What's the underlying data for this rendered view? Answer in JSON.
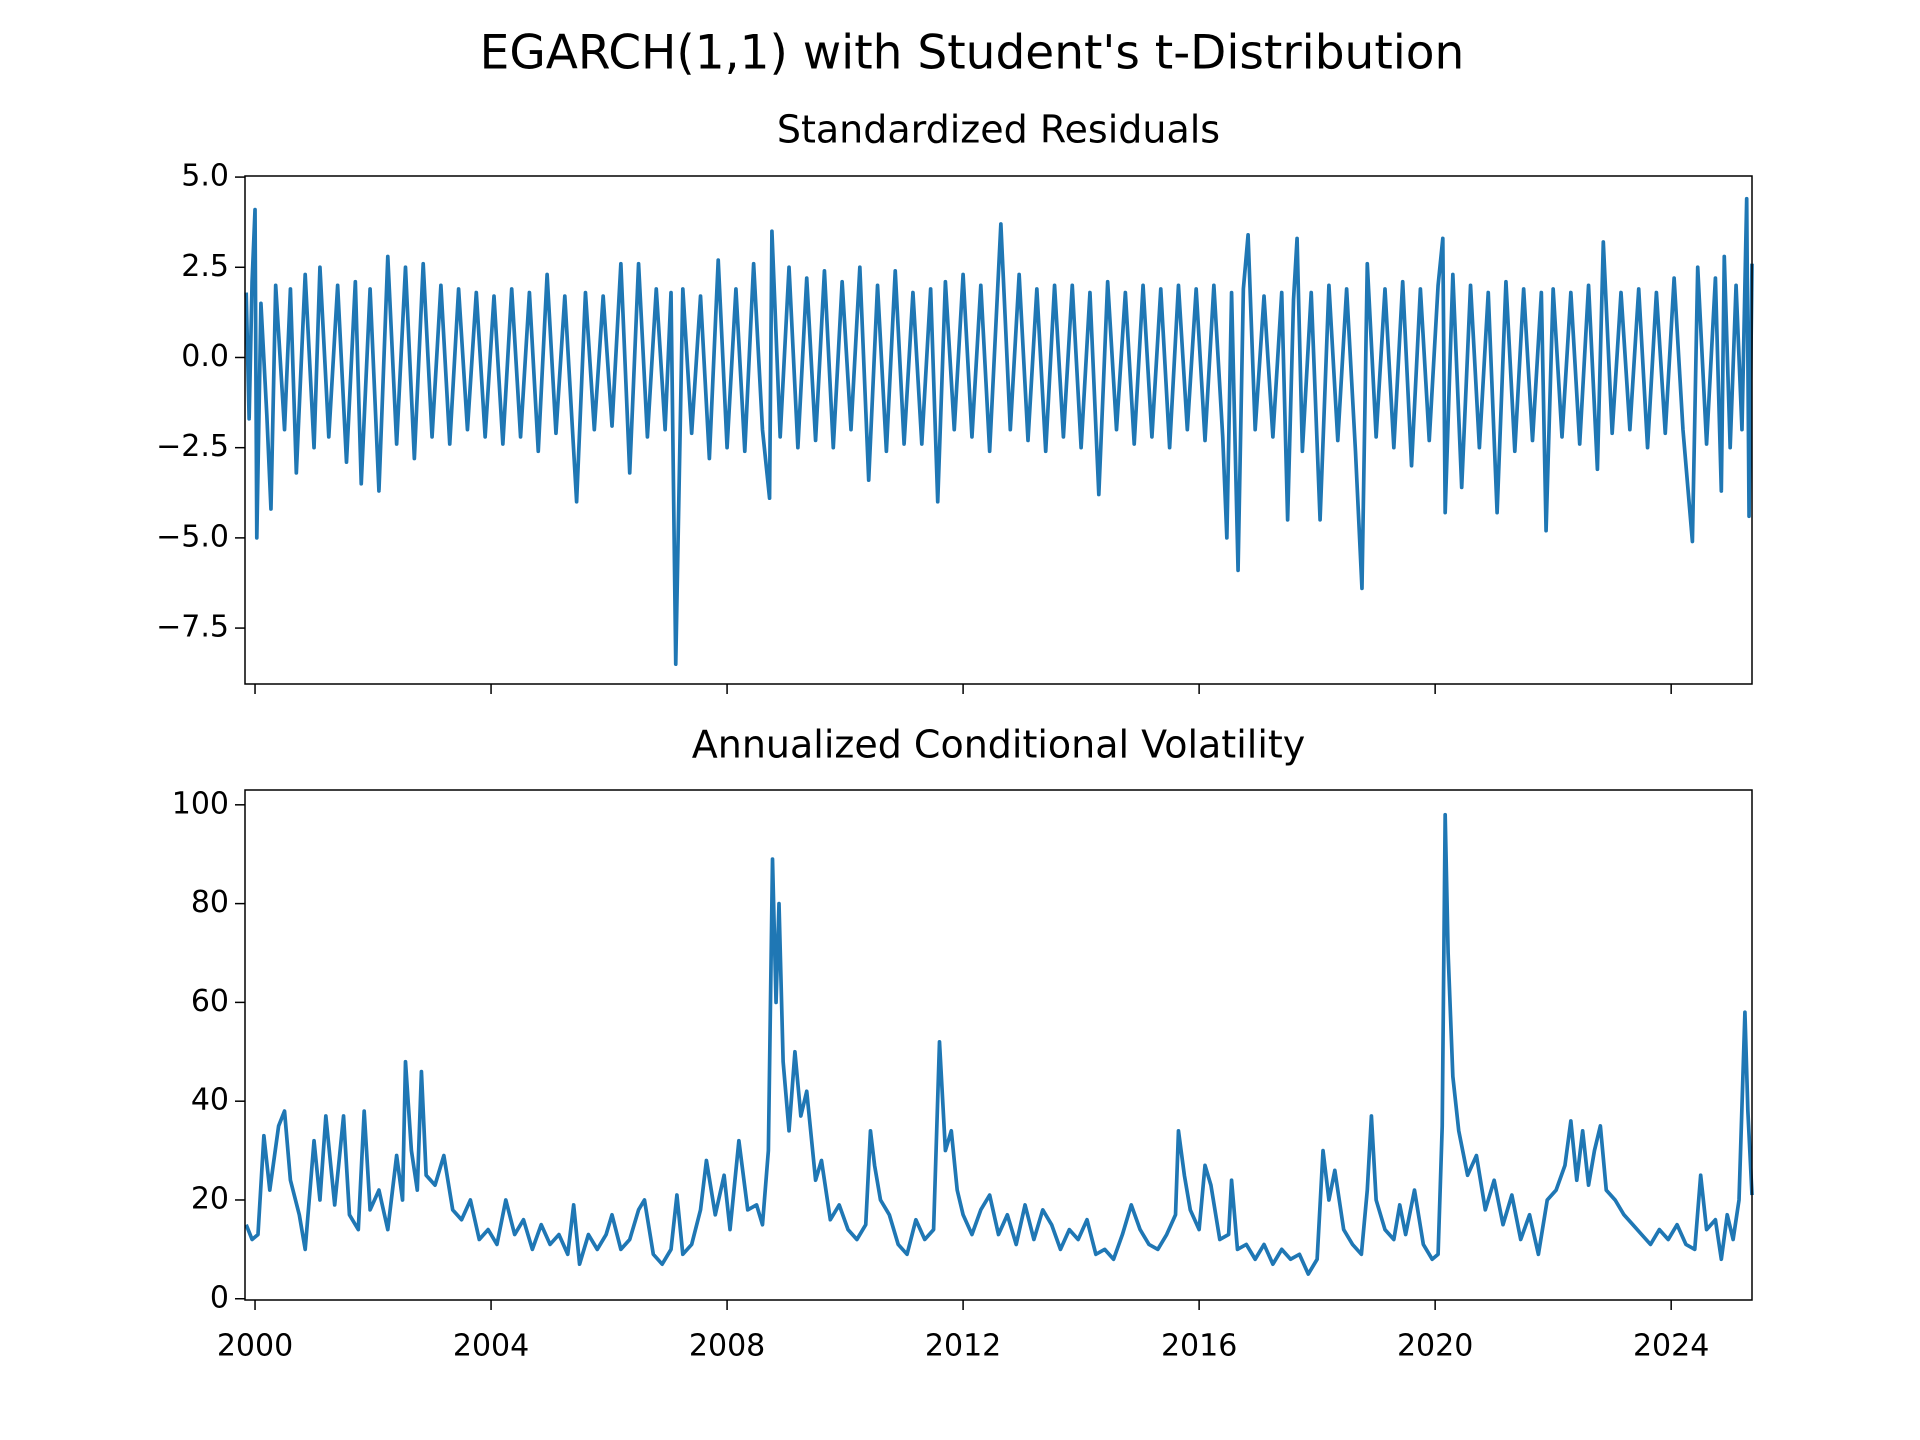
{
  "title": "EGARCH(1,1) with Student's t-Distribution",
  "chart_data": [
    {
      "type": "line",
      "title": "Standardized Residuals",
      "x": [
        1999.85,
        1999.9,
        1999.95,
        2000.0,
        2000.03,
        2000.1,
        2000.2,
        2000.27,
        2000.35,
        2000.5,
        2000.6,
        2000.7,
        2000.85,
        2001.0,
        2001.1,
        2001.25,
        2001.4,
        2001.55,
        2001.7,
        2001.8,
        2001.95,
        2002.1,
        2002.25,
        2002.4,
        2002.55,
        2002.7,
        2002.85,
        2003.0,
        2003.15,
        2003.3,
        2003.45,
        2003.6,
        2003.75,
        2003.9,
        2004.05,
        2004.2,
        2004.35,
        2004.5,
        2004.65,
        2004.8,
        2004.95,
        2005.1,
        2005.25,
        2005.45,
        2005.6,
        2005.75,
        2005.9,
        2006.05,
        2006.2,
        2006.35,
        2006.5,
        2006.65,
        2006.8,
        2006.95,
        2007.05,
        2007.13,
        2007.25,
        2007.4,
        2007.55,
        2007.7,
        2007.85,
        2008.0,
        2008.15,
        2008.3,
        2008.45,
        2008.6,
        2008.72,
        2008.76,
        2008.9,
        2009.05,
        2009.2,
        2009.35,
        2009.5,
        2009.65,
        2009.8,
        2009.95,
        2010.1,
        2010.25,
        2010.4,
        2010.55,
        2010.7,
        2010.85,
        2011.0,
        2011.15,
        2011.3,
        2011.45,
        2011.57,
        2011.7,
        2011.85,
        2012.0,
        2012.15,
        2012.3,
        2012.45,
        2012.64,
        2012.8,
        2012.95,
        2013.1,
        2013.25,
        2013.4,
        2013.55,
        2013.7,
        2013.85,
        2014.0,
        2014.15,
        2014.3,
        2014.45,
        2014.6,
        2014.75,
        2014.9,
        2015.05,
        2015.2,
        2015.35,
        2015.5,
        2015.65,
        2015.8,
        2015.95,
        2016.1,
        2016.25,
        2016.4,
        2016.47,
        2016.55,
        2016.66,
        2016.75,
        2016.83,
        2016.95,
        2017.1,
        2017.25,
        2017.4,
        2017.5,
        2017.6,
        2017.66,
        2017.75,
        2017.9,
        2018.05,
        2018.2,
        2018.35,
        2018.5,
        2018.65,
        2018.76,
        2018.85,
        2019.0,
        2019.15,
        2019.3,
        2019.45,
        2019.6,
        2019.75,
        2019.9,
        2020.05,
        2020.13,
        2020.17,
        2020.3,
        2020.45,
        2020.6,
        2020.75,
        2020.9,
        2021.05,
        2021.2,
        2021.35,
        2021.5,
        2021.65,
        2021.8,
        2021.88,
        2022.0,
        2022.15,
        2022.3,
        2022.45,
        2022.6,
        2022.75,
        2022.85,
        2023.0,
        2023.15,
        2023.3,
        2023.45,
        2023.6,
        2023.75,
        2023.9,
        2024.05,
        2024.2,
        2024.36,
        2024.45,
        2024.6,
        2024.75,
        2024.85,
        2024.9,
        2025.0,
        2025.1,
        2025.2,
        2025.28,
        2025.32,
        2025.37
      ],
      "series": [
        {
          "color": "#1f77b4",
          "values": [
            1.8,
            -1.7,
            2.1,
            4.1,
            -5.0,
            1.5,
            -1.6,
            -4.2,
            2.0,
            -2.0,
            1.9,
            -3.2,
            2.3,
            -2.5,
            2.5,
            -2.2,
            2.0,
            -2.9,
            2.1,
            -3.5,
            1.9,
            -3.7,
            2.8,
            -2.4,
            2.5,
            -2.8,
            2.6,
            -2.2,
            2.0,
            -2.4,
            1.9,
            -2.0,
            1.8,
            -2.2,
            1.7,
            -2.4,
            1.9,
            -2.2,
            1.8,
            -2.6,
            2.3,
            -2.1,
            1.7,
            -4.0,
            1.8,
            -2.0,
            1.7,
            -1.9,
            2.6,
            -3.2,
            2.6,
            -2.2,
            1.9,
            -2.0,
            1.8,
            -8.5,
            1.9,
            -2.1,
            1.7,
            -2.8,
            2.7,
            -2.5,
            1.9,
            -2.6,
            2.6,
            -2.0,
            -3.9,
            3.5,
            -2.2,
            2.5,
            -2.5,
            2.2,
            -2.3,
            2.4,
            -2.5,
            2.1,
            -2.0,
            2.5,
            -3.4,
            2.0,
            -2.6,
            2.4,
            -2.4,
            1.8,
            -2.4,
            1.9,
            -4.0,
            2.1,
            -2.0,
            2.3,
            -2.2,
            2.0,
            -2.6,
            3.7,
            -2.0,
            2.3,
            -2.3,
            1.9,
            -2.6,
            2.0,
            -2.2,
            2.0,
            -2.5,
            1.8,
            -3.8,
            2.1,
            -2.0,
            1.8,
            -2.4,
            2.0,
            -2.2,
            1.9,
            -2.5,
            2.0,
            -2.0,
            1.9,
            -2.3,
            2.0,
            -2.2,
            -5.0,
            1.8,
            -5.9,
            1.9,
            3.4,
            -2.0,
            1.7,
            -2.2,
            1.8,
            -4.5,
            1.6,
            3.3,
            -2.6,
            1.8,
            -4.5,
            2.0,
            -2.3,
            1.9,
            -2.6,
            -6.4,
            2.6,
            -2.2,
            1.9,
            -2.5,
            2.1,
            -3.0,
            1.9,
            -2.3,
            2.0,
            3.3,
            -4.3,
            2.3,
            -3.6,
            2.0,
            -2.5,
            1.8,
            -4.3,
            2.1,
            -2.6,
            1.9,
            -2.3,
            1.8,
            -4.8,
            1.9,
            -2.2,
            1.8,
            -2.4,
            2.0,
            -3.1,
            3.2,
            -2.1,
            1.8,
            -2.0,
            1.9,
            -2.5,
            1.8,
            -2.1,
            2.2,
            -2.0,
            -5.1,
            2.5,
            -2.4,
            2.2,
            -3.7,
            2.8,
            -2.5,
            2.0,
            -2.0,
            4.4,
            -4.4,
            2.6
          ]
        }
      ],
      "xlim": [
        1999.83,
        2025.37
      ],
      "xticks": [
        2000,
        2004,
        2008,
        2012,
        2016,
        2020,
        2024
      ],
      "ylim": [
        -9.05,
        5.03
      ],
      "yticks": [
        {
          "value": 5,
          "label": "5.0"
        },
        {
          "value": 2.5,
          "label": "2.5"
        },
        {
          "value": 0,
          "label": "0.0"
        },
        {
          "value": -2.5,
          "label": "−2.5"
        },
        {
          "value": -5,
          "label": "−5.0"
        },
        {
          "value": -7.5,
          "label": "−7.5"
        }
      ]
    },
    {
      "type": "line",
      "title": "Annualized Conditional Volatility",
      "x": [
        1999.85,
        1999.95,
        2000.05,
        2000.15,
        2000.25,
        2000.4,
        2000.5,
        2000.6,
        2000.75,
        2000.85,
        2001.0,
        2001.1,
        2001.2,
        2001.35,
        2001.5,
        2001.6,
        2001.75,
        2001.85,
        2001.95,
        2002.1,
        2002.25,
        2002.4,
        2002.5,
        2002.55,
        2002.65,
        2002.75,
        2002.82,
        2002.9,
        2003.05,
        2003.2,
        2003.35,
        2003.5,
        2003.65,
        2003.8,
        2003.95,
        2004.1,
        2004.25,
        2004.4,
        2004.55,
        2004.7,
        2004.85,
        2005.0,
        2005.15,
        2005.3,
        2005.4,
        2005.5,
        2005.65,
        2005.8,
        2005.95,
        2006.05,
        2006.2,
        2006.35,
        2006.5,
        2006.6,
        2006.75,
        2006.9,
        2007.05,
        2007.15,
        2007.25,
        2007.4,
        2007.55,
        2007.65,
        2007.8,
        2007.95,
        2008.05,
        2008.2,
        2008.35,
        2008.5,
        2008.6,
        2008.7,
        2008.77,
        2008.83,
        2008.88,
        2008.95,
        2009.05,
        2009.15,
        2009.25,
        2009.35,
        2009.5,
        2009.6,
        2009.75,
        2009.9,
        2010.05,
        2010.2,
        2010.35,
        2010.43,
        2010.5,
        2010.6,
        2010.75,
        2010.9,
        2011.05,
        2011.2,
        2011.35,
        2011.5,
        2011.6,
        2011.7,
        2011.8,
        2011.9,
        2012.0,
        2012.15,
        2012.3,
        2012.45,
        2012.6,
        2012.75,
        2012.9,
        2013.05,
        2013.2,
        2013.35,
        2013.5,
        2013.65,
        2013.8,
        2013.95,
        2014.1,
        2014.25,
        2014.4,
        2014.55,
        2014.7,
        2014.85,
        2015.0,
        2015.15,
        2015.3,
        2015.45,
        2015.6,
        2015.65,
        2015.75,
        2015.85,
        2016.0,
        2016.1,
        2016.2,
        2016.35,
        2016.5,
        2016.55,
        2016.65,
        2016.8,
        2016.95,
        2017.1,
        2017.25,
        2017.4,
        2017.55,
        2017.7,
        2017.85,
        2018.0,
        2018.1,
        2018.2,
        2018.3,
        2018.45,
        2018.6,
        2018.75,
        2018.85,
        2018.92,
        2019.0,
        2019.15,
        2019.3,
        2019.4,
        2019.5,
        2019.65,
        2019.8,
        2019.95,
        2020.05,
        2020.12,
        2020.17,
        2020.22,
        2020.3,
        2020.4,
        2020.55,
        2020.7,
        2020.85,
        2021.0,
        2021.15,
        2021.3,
        2021.45,
        2021.6,
        2021.75,
        2021.9,
        2022.05,
        2022.2,
        2022.3,
        2022.4,
        2022.5,
        2022.6,
        2022.7,
        2022.8,
        2022.9,
        2023.05,
        2023.2,
        2023.35,
        2023.5,
        2023.65,
        2023.8,
        2023.95,
        2024.1,
        2024.25,
        2024.4,
        2024.5,
        2024.6,
        2024.75,
        2024.85,
        2024.95,
        2025.05,
        2025.15,
        2025.25,
        2025.3,
        2025.37
      ],
      "series": [
        {
          "color": "#1f77b4",
          "values": [
            15,
            12,
            13,
            33,
            22,
            35,
            38,
            24,
            17,
            10,
            32,
            20,
            37,
            19,
            37,
            17,
            14,
            38,
            18,
            22,
            14,
            29,
            20,
            48,
            30,
            22,
            46,
            25,
            23,
            29,
            18,
            16,
            20,
            12,
            14,
            11,
            20,
            13,
            16,
            10,
            15,
            11,
            13,
            9,
            19,
            7,
            13,
            10,
            13,
            17,
            10,
            12,
            18,
            20,
            9,
            7,
            10,
            21,
            9,
            11,
            18,
            28,
            17,
            25,
            14,
            32,
            18,
            19,
            15,
            30,
            89,
            60,
            80,
            48,
            34,
            50,
            37,
            42,
            24,
            28,
            16,
            19,
            14,
            12,
            15,
            34,
            27,
            20,
            17,
            11,
            9,
            16,
            12,
            14,
            52,
            30,
            34,
            22,
            17,
            13,
            18,
            21,
            13,
            17,
            11,
            19,
            12,
            18,
            15,
            10,
            14,
            12,
            16,
            9,
            10,
            8,
            13,
            19,
            14,
            11,
            10,
            13,
            17,
            34,
            25,
            18,
            14,
            27,
            23,
            12,
            13,
            24,
            10,
            11,
            8,
            11,
            7,
            10,
            8,
            9,
            5,
            8,
            30,
            20,
            26,
            14,
            11,
            9,
            22,
            37,
            20,
            14,
            12,
            19,
            13,
            22,
            11,
            8,
            9,
            35,
            98,
            70,
            45,
            34,
            25,
            29,
            18,
            24,
            15,
            21,
            12,
            17,
            9,
            20,
            22,
            27,
            36,
            24,
            34,
            23,
            30,
            35,
            22,
            20,
            17,
            15,
            13,
            11,
            14,
            12,
            15,
            11,
            10,
            25,
            14,
            16,
            8,
            17,
            12,
            20,
            58,
            38,
            21
          ]
        }
      ],
      "xlim": [
        1999.83,
        2025.37
      ],
      "xticks": [
        2000,
        2004,
        2008,
        2012,
        2016,
        2020,
        2024
      ],
      "ylim": [
        -0.25,
        103
      ],
      "yticks": [
        0,
        20,
        40,
        60,
        80,
        100
      ]
    }
  ]
}
